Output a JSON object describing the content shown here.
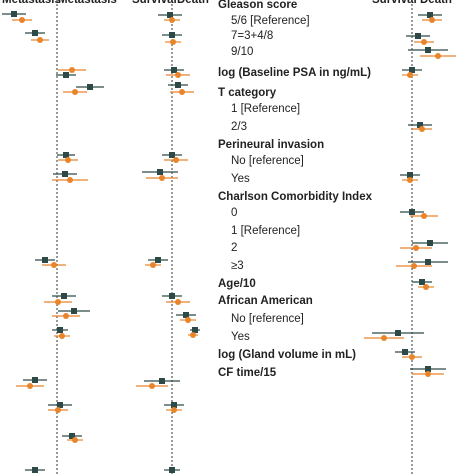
{
  "headers": [
    "Metastasis",
    "Metastasis",
    "Survival",
    "Death",
    "Survival",
    "Death"
  ],
  "rows": [
    {
      "label": "Gleason score",
      "bold": true
    },
    {
      "label": "5/6 [Reference]"
    },
    {
      "label": "7=3+4/8"
    },
    {
      "label": "9/10"
    },
    {
      "label": "log (Baseline PSA in ng/mL)",
      "bold": true
    },
    {
      "label": "T category",
      "bold": true
    },
    {
      "label": "1 [Reference]"
    },
    {
      "label": "2/3"
    },
    {
      "label": "Perineural invasion",
      "bold": true
    },
    {
      "label": "No [reference]"
    },
    {
      "label": "Yes"
    },
    {
      "label": "Charlson Comorbidity Index",
      "bold": true
    },
    {
      "label": "0"
    },
    {
      "label": "1 [Reference]"
    },
    {
      "label": "2"
    },
    {
      "label": "≥3"
    },
    {
      "label": "Age/10",
      "bold": true
    },
    {
      "label": "African American",
      "bold": true
    },
    {
      "label": "No [reference]"
    },
    {
      "label": "Yes"
    },
    {
      "label": "log (Gland volume in mL)",
      "bold": true
    },
    {
      "label": "CF time/15",
      "bold": true
    }
  ]
}
